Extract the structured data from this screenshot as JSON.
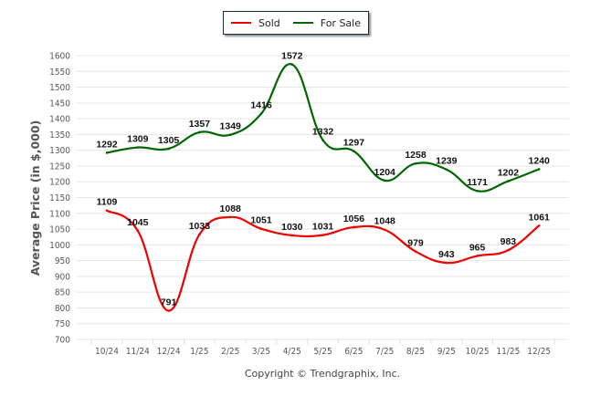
{
  "chart_data": {
    "type": "line",
    "title": "",
    "xlabel": "",
    "ylabel": "Average Price (in $,000)",
    "ylim": [
      700,
      1600
    ],
    "ytick_step": 50,
    "grid": true,
    "legend_position": "top-center",
    "categories": [
      "10/24",
      "11/24",
      "12/24",
      "1/25",
      "2/25",
      "3/25",
      "4/25",
      "5/25",
      "6/25",
      "7/25",
      "8/25",
      "9/25",
      "10/25",
      "11/25",
      "12/25"
    ],
    "series": [
      {
        "name": "Sold",
        "color": "#ee0000",
        "values": [
          1109,
          1045,
          791,
          1033,
          1088,
          1051,
          1030,
          1031,
          1056,
          1048,
          979,
          943,
          965,
          983,
          1061
        ]
      },
      {
        "name": "For Sale",
        "color": "#006600",
        "values": [
          1292,
          1309,
          1305,
          1357,
          1349,
          1416,
          1572,
          1332,
          1297,
          1204,
          1258,
          1239,
          1171,
          1202,
          1240
        ]
      }
    ],
    "footer": "Copyright © Trendgraphix, Inc."
  }
}
